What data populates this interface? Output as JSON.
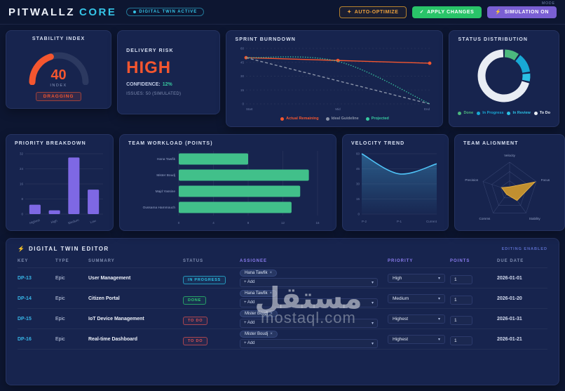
{
  "header": {
    "brand_primary": "PITWALLZ",
    "brand_accent": "CORE",
    "status_badge": "DIGITAL TWIN ACTIVE",
    "mode_label": "MODE",
    "buttons": [
      {
        "label": "AUTO-OPTIMIZE",
        "icon": "sparkle-icon",
        "glyph": "✦"
      },
      {
        "label": "APPLY CHANGES",
        "icon": "check-icon",
        "glyph": "✓"
      },
      {
        "label": "SIMULATION ON",
        "icon": "bolt-icon",
        "glyph": "⚡"
      }
    ]
  },
  "cards": {
    "risk": {
      "title": "DELIVERY RISK",
      "level": "HIGH",
      "confidence_label": "CONFIDENCE:",
      "confidence_value": "12%",
      "issues": "ISSUES: 50 (SIMULATED)"
    }
  },
  "chart_data": [
    {
      "type": "gauge",
      "title": "STABILITY INDEX",
      "value": 40,
      "max": 100,
      "unit": "INDEX",
      "status_badge": "DRAGGING",
      "color": "#f4562f",
      "track_color": "#2c3960"
    },
    {
      "type": "line",
      "title": "SPRINT BURNDOWN",
      "x": [
        "Start",
        "Mid",
        "End"
      ],
      "ylim": [
        0,
        60
      ],
      "yticks": [
        0,
        15,
        30,
        45,
        60
      ],
      "series": [
        {
          "name": "Actual Remaining",
          "values": [
            50,
            47,
            44
          ],
          "color": "#f4562f",
          "style": "solid",
          "markers": true
        },
        {
          "name": "Ideal Guideline",
          "values": [
            50,
            25,
            0
          ],
          "color": "#8a93a8",
          "style": "dashed",
          "markers": false
        },
        {
          "name": "Projected",
          "values": [
            50,
            46,
            0
          ],
          "color": "#37c9a0",
          "style": "dotted",
          "markers": false,
          "smooth": true
        }
      ],
      "legend_position": "bottom"
    },
    {
      "type": "pie",
      "title": "STATUS DISTRIBUTION",
      "donut": true,
      "slices": [
        {
          "label": "Done",
          "value": 10,
          "color": "#4cb97e"
        },
        {
          "label": "In Progress",
          "value": 13,
          "color": "#18a8d4"
        },
        {
          "label": "In Review",
          "value": 6,
          "color": "#2bc0e4"
        },
        {
          "label": "To Do",
          "value": 71,
          "color": "#e9edf4"
        }
      ],
      "legend_position": "bottom"
    },
    {
      "type": "bar",
      "title": "PRIORITY BREAKDOWN",
      "categories": [
        "Highest",
        "High",
        "Medium",
        "Low"
      ],
      "values": [
        5,
        2,
        30,
        13
      ],
      "ylim": [
        0,
        32
      ],
      "yticks": [
        0,
        8,
        16,
        24,
        32
      ],
      "color": "#7e68e4"
    },
    {
      "type": "hbar",
      "title": "TEAM WORKLOAD (POINTS)",
      "categories": [
        "Hana Tawfik",
        "Mister Boudj",
        "Majd Yassine",
        "Oussama Hammouch"
      ],
      "values": [
        8,
        15,
        14,
        13
      ],
      "xlim": [
        0,
        16
      ],
      "xticks": [
        0,
        4,
        8,
        12,
        16
      ],
      "color": "#41c08a"
    },
    {
      "type": "area",
      "title": "VELOCITY TREND",
      "x": [
        "P-2",
        "P-1",
        "Current"
      ],
      "values": [
        60,
        40,
        50
      ],
      "ylim": [
        0,
        60
      ],
      "yticks": [
        0,
        15,
        30,
        45,
        60
      ],
      "color": "#4fc3f7"
    },
    {
      "type": "radar",
      "title": "TEAM ALIGNMENT",
      "axes": [
        "Velocity",
        "Focus",
        "Stability",
        "Comms",
        "Precision"
      ],
      "values": [
        0.12,
        0.95,
        0.45,
        0.18,
        0.3
      ],
      "max": 1,
      "color": "#c9962e"
    }
  ],
  "table": {
    "icon_glyph": "⚡",
    "section_title": "DIGITAL TWIN EDITOR",
    "editing_note": "EDITING ENABLED",
    "columns": [
      "KEY",
      "TYPE",
      "SUMMARY",
      "STATUS",
      "ASSIGNEE",
      "PRIORITY",
      "POINTS",
      "DUE DATE"
    ],
    "add_label": "+ Add",
    "remove_glyph": "×",
    "chevron_glyph": "▾",
    "rows": [
      {
        "key": "DP-13",
        "type": "Epic",
        "summary": "User Management",
        "status": "IN PROGRESS",
        "status_color": "cyan",
        "assignees": [
          "Hana Tawfik"
        ],
        "priority": "High",
        "points": "1",
        "due": "2026-01-01"
      },
      {
        "key": "DP-14",
        "type": "Epic",
        "summary": "Citizen Portal",
        "status": "DONE",
        "status_color": "green",
        "assignees": [
          "Hana Tawfik"
        ],
        "priority": "Medium",
        "points": "1",
        "due": "2026-01-20"
      },
      {
        "key": "DP-15",
        "type": "Epic",
        "summary": "IoT Device Management",
        "status": "TO DO",
        "status_color": "red",
        "assignees": [
          "Mister Boudj"
        ],
        "priority": "Highest",
        "points": "1",
        "due": "2026-01-31"
      },
      {
        "key": "DP-16",
        "type": "Epic",
        "summary": "Real-time Dashboard",
        "status": "TO DO",
        "status_color": "red",
        "assignees": [
          "Mister Boudj"
        ],
        "priority": "Highest",
        "points": "1",
        "due": "2026-01-21"
      }
    ]
  },
  "watermark": {
    "arabic": "مستقل",
    "latin": "mostaql.com"
  }
}
